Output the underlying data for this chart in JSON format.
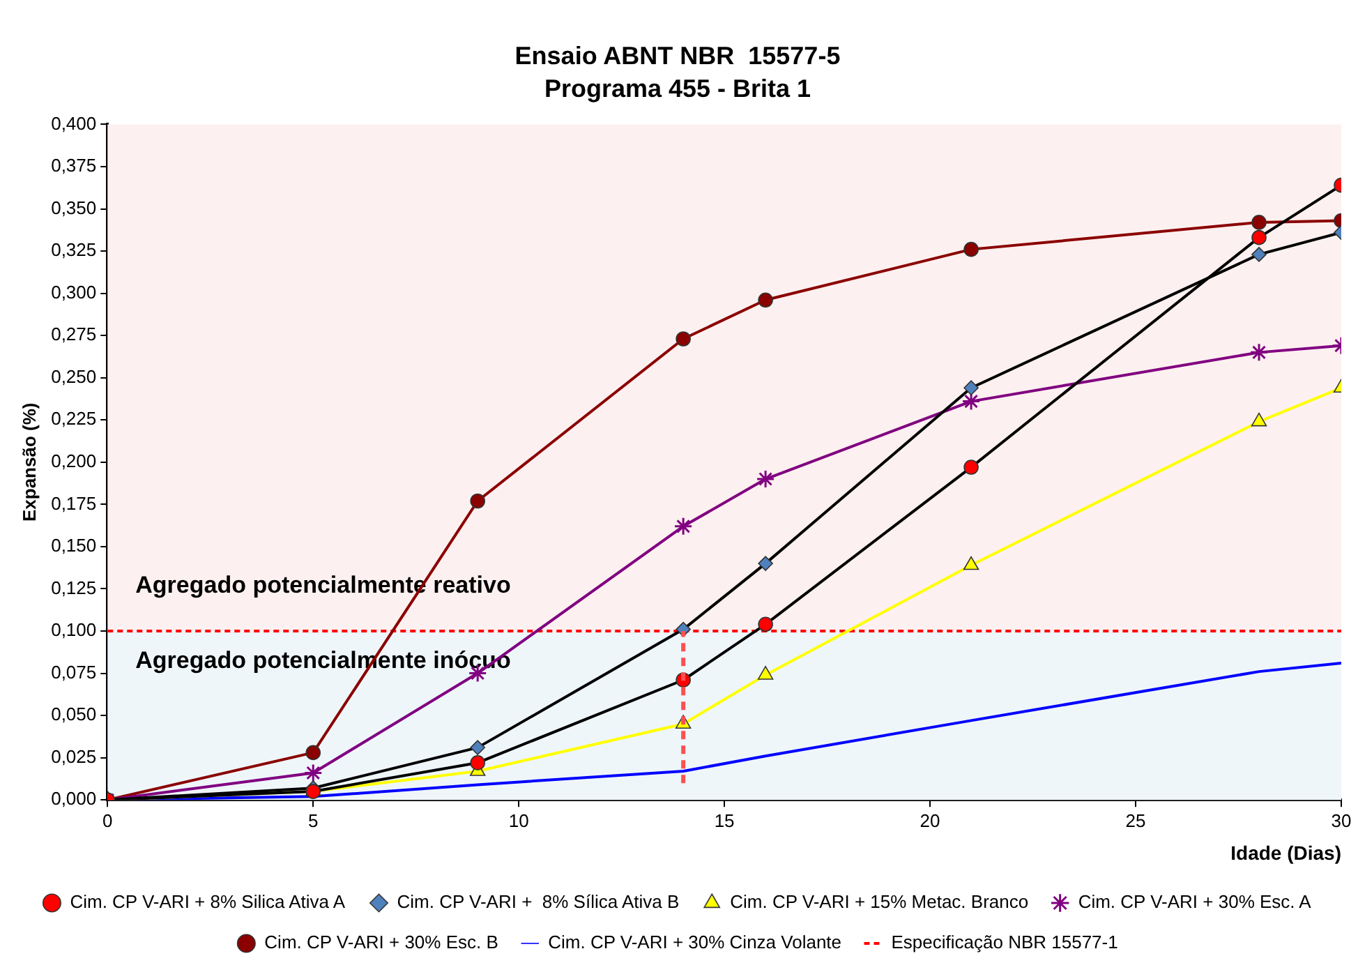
{
  "chart_data": {
    "type": "line",
    "title": "Ensaio ABNT NBR  15577-5",
    "subtitle": "Programa 455 - Brita 1",
    "xlabel": "Idade (Dias)",
    "ylabel": "Expansão (%)",
    "x": [
      0,
      5,
      9,
      14,
      16,
      21,
      28,
      30
    ],
    "xlim": [
      0,
      30
    ],
    "xticks": [
      0,
      5,
      10,
      15,
      20,
      25,
      30
    ],
    "ylim": [
      0,
      0.4
    ],
    "yticks": [
      {
        "value": 0,
        "label": "0,000"
      },
      {
        "value": 0.025,
        "label": "0,025"
      },
      {
        "value": 0.05,
        "label": "0,050"
      },
      {
        "value": 0.075,
        "label": "0,075"
      },
      {
        "value": 0.1,
        "label": "0,100"
      },
      {
        "value": 0.125,
        "label": "0,125"
      },
      {
        "value": 0.15,
        "label": "0,150"
      },
      {
        "value": 0.175,
        "label": "0,175"
      },
      {
        "value": 0.2,
        "label": "0,200"
      },
      {
        "value": 0.225,
        "label": "0,225"
      },
      {
        "value": 0.25,
        "label": "0,250"
      },
      {
        "value": 0.275,
        "label": "0,275"
      },
      {
        "value": 0.3,
        "label": "0,300"
      },
      {
        "value": 0.325,
        "label": "0,325"
      },
      {
        "value": 0.35,
        "label": "0,350"
      },
      {
        "value": 0.375,
        "label": "0,375"
      },
      {
        "value": 0.4,
        "label": "0,400"
      }
    ],
    "grid": false,
    "legend": "bottom",
    "series": [
      {
        "name": "Cim. CP V-ARI + 8% Silica Ativa A",
        "color": "#000000",
        "colors": [
          "#ff0000",
          "#ff0000",
          "#ff0000",
          "#ff0000",
          "#ff0000",
          "#ff0000",
          "#ff0000",
          "#ff0000"
        ],
        "marker": "circle",
        "values": [
          0,
          0.005,
          0.022,
          0.071,
          0.104,
          0.197,
          0.333,
          0.364
        ]
      },
      {
        "name": "Cim. CP V-ARI +  8% Sílica Ativa B",
        "color": "#000000",
        "colors": [
          "#4f81bd",
          "#4f81bd",
          "#4f81bd",
          "#4f81bd",
          "#4f81bd",
          "#4f81bd",
          "#4f81bd",
          "#4f81bd"
        ],
        "marker": "diamond",
        "values": [
          0,
          0.007,
          0.031,
          0.101,
          0.14,
          0.244,
          0.323,
          0.336
        ]
      },
      {
        "name": "Cim. CP V-ARI + 15% Metac. Branco",
        "color": "#ffff00",
        "marker": "triangle",
        "values": [
          0,
          0.005,
          0.017,
          0.045,
          0.074,
          0.139,
          0.224,
          0.244
        ]
      },
      {
        "name": "Cim. CP V-ARI + 30% Esc. A",
        "color": "#800080",
        "marker": "cross",
        "values": [
          0,
          0.016,
          0.075,
          0.162,
          0.19,
          0.236,
          0.265,
          0.269
        ]
      },
      {
        "name": "Cim. CP V-ARI + 30% Esc. B",
        "color": "#8b0000",
        "marker": "circle",
        "values": [
          0,
          0.028,
          0.177,
          0.273,
          0.296,
          0.326,
          0.342,
          0.343
        ]
      },
      {
        "name": "Cim. CP V-ARI + 30% Cinza Volante",
        "color": "#0000ff",
        "marker": "none",
        "values": [
          0,
          0.002,
          0.009,
          0.017,
          0.026,
          0.047,
          0.076,
          0.081
        ]
      }
    ],
    "ref_lines": [
      {
        "axis": "y",
        "value": 0.1,
        "label": "Especificação NBR 15577-1",
        "color": "#ff0000",
        "line_style": "dashed"
      },
      {
        "axis": "x",
        "value": 14,
        "color": "#ff5050",
        "line_style": "dashed"
      }
    ],
    "bands": [
      {
        "axis": "y",
        "from": 0,
        "to": 0.1,
        "label": "Agregado potencialmente inócuo",
        "color": "#eef6fa"
      },
      {
        "axis": "y",
        "from": 0.1,
        "to": 0.4,
        "label": "Agregado potencialmente reativo",
        "color": "#fdf0f0"
      }
    ]
  }
}
